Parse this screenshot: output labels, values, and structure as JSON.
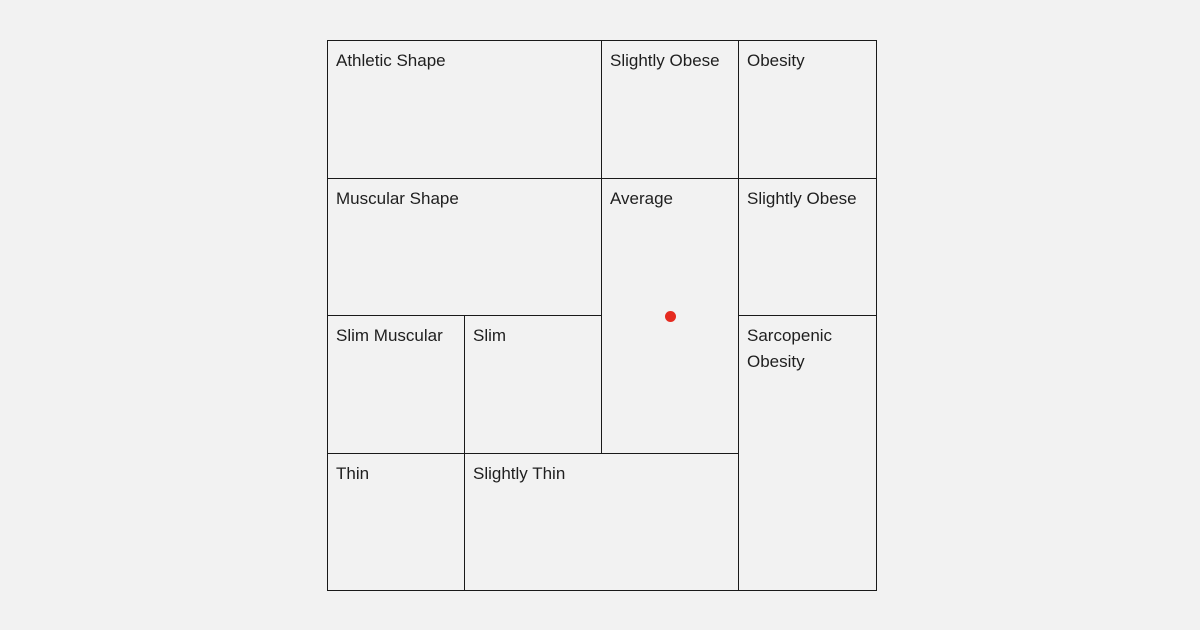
{
  "cells": {
    "athletic_shape": "Athletic Shape",
    "slightly_obese_top": "Slightly Obese",
    "obesity": "Obesity",
    "muscular_shape": "Muscular Shape",
    "average": "Average",
    "slightly_obese_middle": "Slightly Obese",
    "slim_muscular": "Slim Muscular",
    "slim": "Slim",
    "sarcopenic_obesity": "Sarcopenic Obesity",
    "thin": "Thin",
    "slightly_thin": "Slightly Thin"
  },
  "marker": {
    "color": "#e52b20",
    "cell": "Average"
  }
}
